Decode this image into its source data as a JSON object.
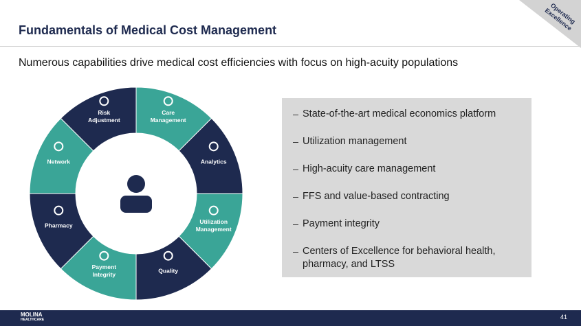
{
  "header": {
    "title": "Fundamentals of Medical Cost Management",
    "subtitle": "Numerous capabilities drive medical cost efficiencies with focus on high-acuity populations",
    "tag": [
      "Operating",
      "Excellence"
    ]
  },
  "wheel": {
    "segments": [
      {
        "label": [
          "Care",
          "Management"
        ]
      },
      {
        "label": [
          "Analytics"
        ]
      },
      {
        "label": [
          "Utilization",
          "Management"
        ]
      },
      {
        "label": [
          "Quality"
        ]
      },
      {
        "label": [
          "Payment",
          "Integrity"
        ]
      },
      {
        "label": [
          "Pharmacy"
        ]
      },
      {
        "label": [
          "Network"
        ]
      },
      {
        "label": [
          "Risk",
          "Adjustment"
        ]
      }
    ]
  },
  "bullets": [
    "State-of-the-art medical economics platform",
    "Utilization management",
    "High-acuity care management",
    "FFS and value-based contracting",
    "Payment integrity",
    "Centers of Excellence for behavioral health, pharmacy, and LTSS"
  ],
  "footer": {
    "logo": [
      "MOLINA",
      "HEALTHCARE"
    ],
    "page": "41"
  }
}
